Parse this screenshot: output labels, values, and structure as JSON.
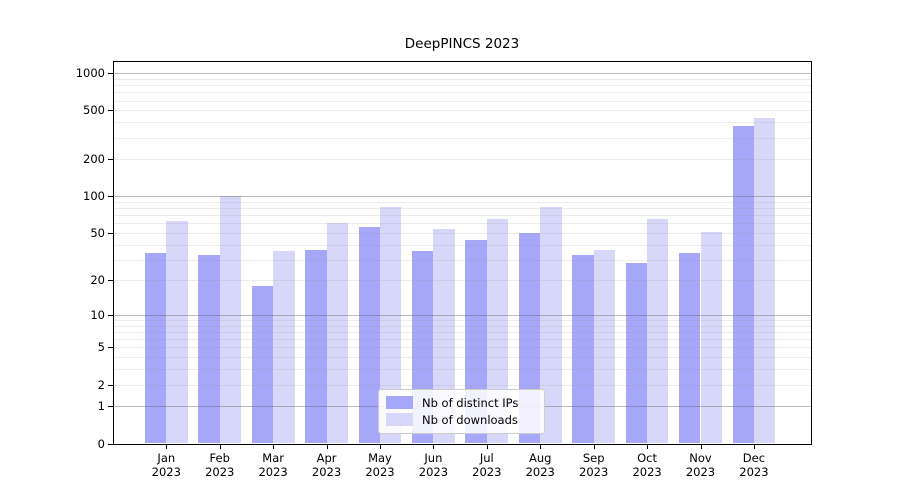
{
  "chart_data": {
    "type": "bar",
    "title": "DeepPINCS 2023",
    "categories": [
      "Jan 2023",
      "Feb 2023",
      "Mar 2023",
      "Apr 2023",
      "May 2023",
      "Jun 2023",
      "Jul 2023",
      "Aug 2023",
      "Sep 2023",
      "Oct 2023",
      "Nov 2023",
      "Dec 2023"
    ],
    "month_labels": [
      "Jan",
      "Feb",
      "Mar",
      "Apr",
      "May",
      "Jun",
      "Jul",
      "Aug",
      "Sep",
      "Oct",
      "Nov",
      "Dec"
    ],
    "year_label": "2023",
    "series": [
      {
        "name": "Nb of distinct IPs",
        "color": "#a7a7fa",
        "values": [
          34,
          33,
          18,
          36,
          56,
          35,
          44,
          50,
          33,
          28,
          34,
          375
        ]
      },
      {
        "name": "Nb of downloads",
        "color": "#d7d7fa",
        "values": [
          63,
          100,
          35,
          60,
          82,
          54,
          65,
          82,
          36,
          65,
          51,
          436
        ]
      }
    ],
    "xlabel": "",
    "ylabel": "",
    "yscale": "log1p (tick position proportional to log10(value+1))",
    "y_ticks": [
      0,
      1,
      2,
      5,
      10,
      20,
      50,
      100,
      200,
      500,
      1000
    ],
    "ylim": [
      0,
      1259
    ],
    "grid": {
      "orientation": "horizontal",
      "major_at": [
        1,
        10,
        100,
        1000
      ],
      "minor": "2-9 within each decade",
      "major_color": "#b8b8b8",
      "minor_color": "#e6e6e6",
      "drawn_over_bars": true
    },
    "legend": {
      "position": "inside bottom-center",
      "items": [
        "Nb of distinct IPs",
        "Nb of downloads"
      ]
    },
    "colors": {
      "distinct_ips": "#a7a7fa",
      "downloads": "#d7d7fa",
      "axis": "#000000",
      "background": "#ffffff"
    }
  }
}
